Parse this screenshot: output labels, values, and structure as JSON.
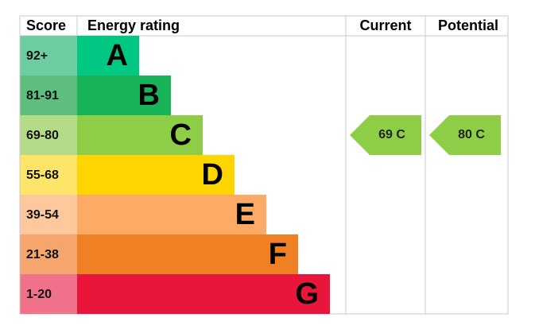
{
  "header": {
    "score": "Score",
    "rating": "Energy rating",
    "current": "Current",
    "potential": "Potential"
  },
  "bands": [
    {
      "score": "92+",
      "letter": "A",
      "color": "#00c781",
      "score_color": "#6dcca0"
    },
    {
      "score": "81-91",
      "letter": "B",
      "color": "#19b459",
      "score_color": "#5dbe7f"
    },
    {
      "score": "69-80",
      "letter": "C",
      "color": "#8dce46",
      "score_color": "#b4dc88"
    },
    {
      "score": "55-68",
      "letter": "D",
      "color": "#ffd500",
      "score_color": "#ffe46a"
    },
    {
      "score": "39-54",
      "letter": "E",
      "color": "#fcaa65",
      "score_color": "#fdc89c"
    },
    {
      "score": "21-38",
      "letter": "F",
      "color": "#ef8023",
      "score_color": "#f5a66c"
    },
    {
      "score": "1-20",
      "letter": "G",
      "color": "#e9153b",
      "score_color": "#f0728a"
    }
  ],
  "current": {
    "label": "69 C",
    "color": "#8dce46"
  },
  "potential": {
    "label": "80 C",
    "color": "#8dce46"
  }
}
